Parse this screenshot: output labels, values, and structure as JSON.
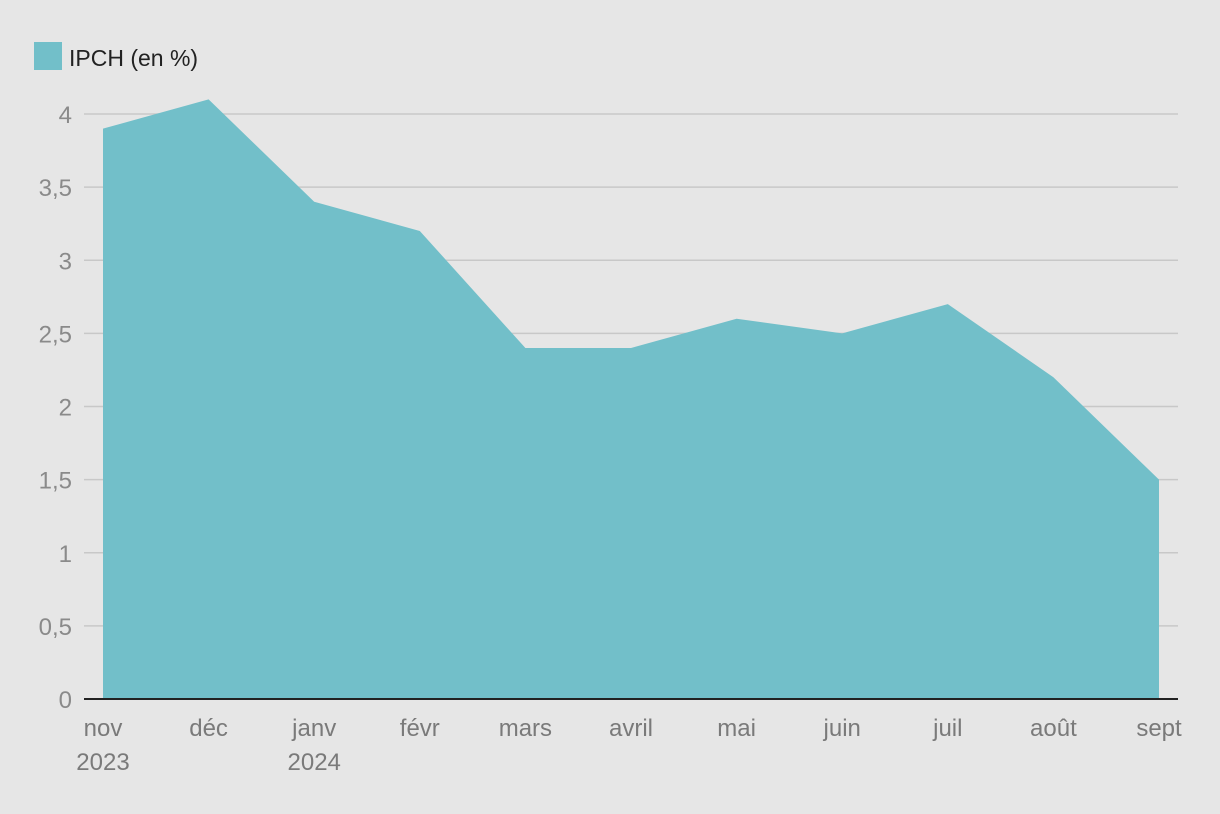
{
  "chart_data": {
    "type": "area",
    "title": "",
    "xlabel": "",
    "ylabel": "",
    "categories": [
      [
        "nov",
        "2023"
      ],
      [
        "déc"
      ],
      [
        "janv",
        "2024"
      ],
      [
        "févr"
      ],
      [
        "mars"
      ],
      [
        "avril"
      ],
      [
        "mai"
      ],
      [
        "juin"
      ],
      [
        "juil"
      ],
      [
        "août"
      ],
      [
        "sept"
      ]
    ],
    "series": [
      {
        "name": "IPCH (en %)",
        "values": [
          3.9,
          4.1,
          3.4,
          3.2,
          2.4,
          2.4,
          2.6,
          2.5,
          2.7,
          2.2,
          1.5
        ]
      }
    ],
    "ylim": [
      0,
      4
    ],
    "yticks": [
      0,
      0.5,
      1,
      1.5,
      2,
      2.5,
      3,
      3.5,
      4
    ],
    "ytick_labels": [
      "0",
      "0,5",
      "1",
      "1,5",
      "2",
      "2,5",
      "3",
      "3,5",
      "4"
    ],
    "grid": true,
    "legend": "top-left",
    "colors": {
      "series": "#72bfc9",
      "background": "#e6e6e6",
      "grid": "#c8c8c8",
      "axis": "#222222"
    }
  }
}
